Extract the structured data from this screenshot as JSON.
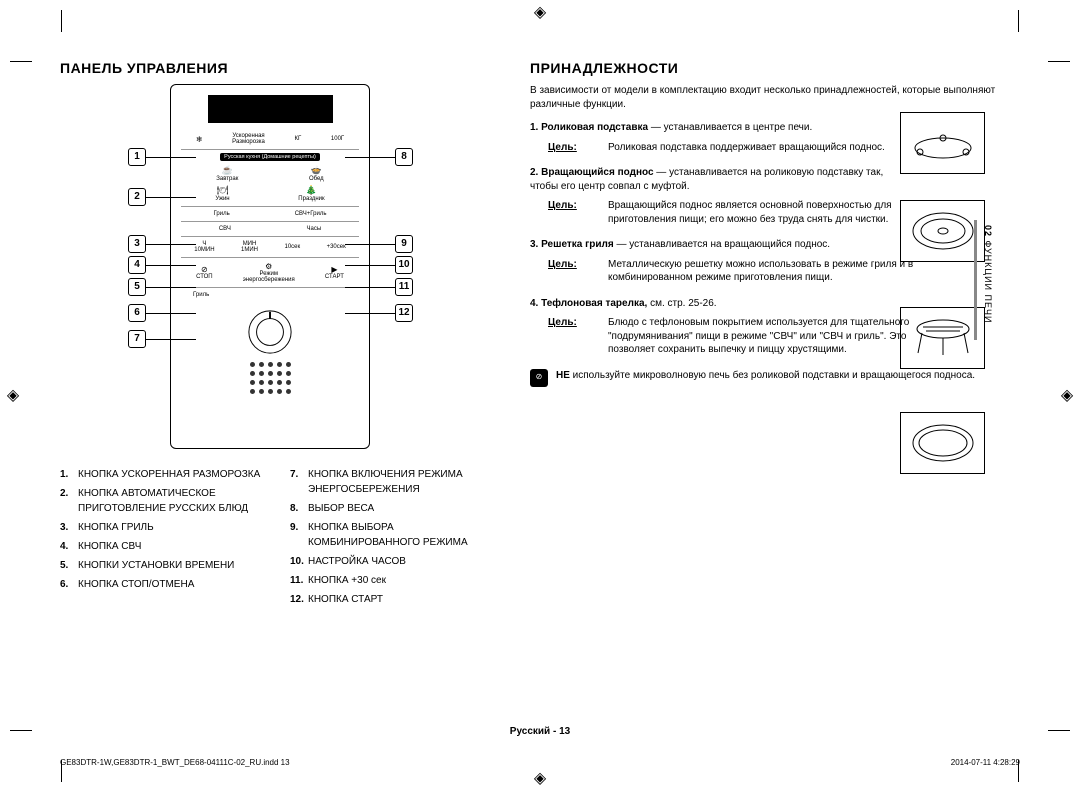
{
  "left": {
    "heading": "ПАНЕЛЬ УПРАВЛЕНИЯ",
    "panel": {
      "defrost": "Ускоренная\nРазморозка",
      "kg": "КГ",
      "g100": "100Г",
      "russianBanner": "Русская кухня (Домашние рецепты)",
      "breakfast": "Завтрак",
      "lunch": "Обед",
      "dinner": "Ужин",
      "holiday": "Праздник",
      "grill": "Гриль",
      "combi": "СВЧ+Гриль",
      "mw": "СВЧ",
      "clock": "Часы",
      "h": "Ч",
      "min": "МИН",
      "t10m": "10МИН",
      "t1m": "1МИН",
      "t10s": "10сек",
      "t30s": "+30сек",
      "stop": "СТОП",
      "eco": "Режим\nэнергосбережения",
      "start": "СТАРТ",
      "grillLabel": "Гриль"
    },
    "callouts": {
      "left": [
        "1",
        "2",
        "3",
        "4",
        "5",
        "6",
        "7"
      ],
      "right": [
        "8",
        "9",
        "10",
        "11",
        "12"
      ]
    },
    "buttons": [
      {
        "n": "1.",
        "t": "КНОПКА УСКОРЕННАЯ РАЗМОРОЗКА"
      },
      {
        "n": "2.",
        "t": "КНОПКА АВТОМАТИЧЕСКОЕ ПРИГОТОВЛЕНИЕ РУССКИХ БЛЮД"
      },
      {
        "n": "3.",
        "t": "КНОПКА ГРИЛЬ"
      },
      {
        "n": "4.",
        "t": "КНОПКА СВЧ"
      },
      {
        "n": "5.",
        "t": "КНОПКИ УСТАНОВКИ ВРЕМЕНИ"
      },
      {
        "n": "6.",
        "t": "КНОПКА СТОП/ОТМЕНА"
      }
    ],
    "buttons2": [
      {
        "n": "7.",
        "t": "КНОПКА ВКЛЮЧЕНИЯ РЕЖИМА ЭНЕРГОСБЕРЕЖЕНИЯ"
      },
      {
        "n": "8.",
        "t": "ВЫБОР ВЕСА"
      },
      {
        "n": "9.",
        "t": "КНОПКА ВЫБОРА КОМБИНИРОВАННОГО РЕЖИМА"
      },
      {
        "n": "10.",
        "t": "НАСТРОЙКА ЧАСОВ"
      },
      {
        "n": "11.",
        "t": "КНОПКА +30 сек"
      },
      {
        "n": "12.",
        "t": "КНОПКА СТАРТ"
      }
    ]
  },
  "right": {
    "heading": "ПРИНАДЛЕЖНОСТИ",
    "intro": "В зависимости от модели в комплектацию входит несколько принадлежностей, которые выполняют различные функции.",
    "items": [
      {
        "n": "1.",
        "title": "Роликовая подставка",
        "desc": " — устанавливается в центре печи.",
        "goalLabel": "Цель:",
        "goal": "Роликовая подставка поддерживает вращающийся поднос."
      },
      {
        "n": "2.",
        "title": "Вращающийся поднос",
        "desc": " — устанавливается на роликовую подставку так, чтобы его центр совпал с муфтой.",
        "goalLabel": "Цель:",
        "goal": "Вращающийся поднос является основной поверхностью для приготовления пищи; его можно без труда снять для чистки."
      },
      {
        "n": "3.",
        "title": "Решетка гриля",
        "desc": " — устанавливается на вращающийся поднос.",
        "goalLabel": "Цель:",
        "goal": "Металлическую решетку можно использовать в режиме гриля и в комбинированном режиме приготовления пищи."
      },
      {
        "n": "4.",
        "title": "Тефлоновая тарелка,",
        "desc": " см. стр. 25-26.",
        "goalLabel": "Цель:",
        "goal": "Блюдо с тефлоновым покрытием используется для тщательного \"подрумянивания\" пищи в режиме \"СВЧ\" или \"СВЧ и гриль\". Это позволяет сохранить выпечку и пиццу хрустящими."
      }
    ],
    "warnBold": "НЕ",
    "warn": " используйте микроволновую печь без роликовой подставки и вращающегося подноса.",
    "tabNum": "02",
    "tabText": " ФУНКЦИИ ПЕЧИ"
  },
  "footer": {
    "center": "Русский - 13",
    "left": "GE83DTR-1W,GE83DTR-1_BWT_DE68-04111C-02_RU.indd   13",
    "right": "2014-07-11   4:28:29"
  }
}
